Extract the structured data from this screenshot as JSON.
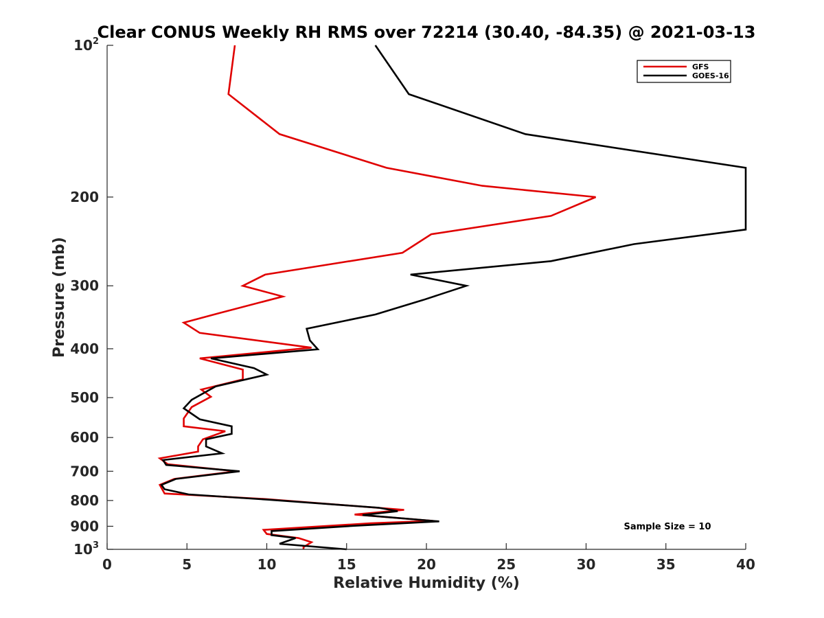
{
  "chart_data": {
    "type": "line",
    "title": "Clear CONUS Weekly RH RMS over 72214 (30.40, -84.35) @ 2021-03-13",
    "xlabel": "Relative Humidity (%)",
    "ylabel": "Pressure (mb)",
    "xlim": [
      0,
      40
    ],
    "ylim": [
      100,
      1000
    ],
    "yscale": "log",
    "y_reversed": true,
    "x_ticks": [
      0,
      5,
      10,
      15,
      20,
      25,
      30,
      35,
      40
    ],
    "x_tick_labels": [
      "0",
      "5",
      "10",
      "15",
      "20",
      "25",
      "30",
      "35",
      "40"
    ],
    "y_ticks": [
      {
        "value": 100,
        "base": "10",
        "exp": "2",
        "label": ""
      },
      {
        "value": 200,
        "base": "",
        "exp": "",
        "label": "200"
      },
      {
        "value": 300,
        "base": "",
        "exp": "",
        "label": "300"
      },
      {
        "value": 400,
        "base": "",
        "exp": "",
        "label": "400"
      },
      {
        "value": 500,
        "base": "",
        "exp": "",
        "label": "500"
      },
      {
        "value": 600,
        "base": "",
        "exp": "",
        "label": "600"
      },
      {
        "value": 700,
        "base": "",
        "exp": "",
        "label": "700"
      },
      {
        "value": 800,
        "base": "",
        "exp": "",
        "label": "800"
      },
      {
        "value": 900,
        "base": "",
        "exp": "",
        "label": "900"
      },
      {
        "value": 1000,
        "base": "10",
        "exp": "3",
        "label": ""
      }
    ],
    "legend_position": "top-right",
    "series": [
      {
        "name": "GFS",
        "color": "#e00000",
        "points": [
          [
            8.0,
            100
          ],
          [
            7.6,
            125
          ],
          [
            10.8,
            150
          ],
          [
            17.5,
            175
          ],
          [
            23.5,
            190
          ],
          [
            30.6,
            200
          ],
          [
            27.8,
            218
          ],
          [
            20.3,
            237
          ],
          [
            18.5,
            258
          ],
          [
            9.9,
            285
          ],
          [
            8.5,
            300
          ],
          [
            11.0,
            315
          ],
          [
            7.0,
            340
          ],
          [
            4.8,
            355
          ],
          [
            5.8,
            372
          ],
          [
            12.8,
            398
          ],
          [
            5.8,
            418
          ],
          [
            8.5,
            440
          ],
          [
            8.5,
            460
          ],
          [
            5.9,
            482
          ],
          [
            6.5,
            498
          ],
          [
            5.3,
            522
          ],
          [
            4.8,
            550
          ],
          [
            4.8,
            570
          ],
          [
            7.4,
            583
          ],
          [
            6.0,
            605
          ],
          [
            5.7,
            625
          ],
          [
            5.7,
            640
          ],
          [
            3.3,
            660
          ],
          [
            3.8,
            678
          ],
          [
            8.1,
            700
          ],
          [
            4.2,
            725
          ],
          [
            3.3,
            745
          ],
          [
            3.6,
            775
          ],
          [
            10.0,
            795
          ],
          [
            18.6,
            835
          ],
          [
            15.5,
            853
          ],
          [
            20.4,
            878
          ],
          [
            16.5,
            888
          ],
          [
            9.8,
            915
          ],
          [
            10.0,
            932
          ],
          [
            12.0,
            950
          ],
          [
            12.8,
            968
          ],
          [
            12.3,
            990
          ],
          [
            12.3,
            1000
          ]
        ]
      },
      {
        "name": "GOES-16",
        "color": "#000000",
        "points": [
          [
            16.8,
            100
          ],
          [
            18.9,
            125
          ],
          [
            26.2,
            150
          ],
          [
            40.0,
            175
          ],
          [
            40.0,
            200
          ],
          [
            40.0,
            232
          ],
          [
            33.0,
            248
          ],
          [
            27.8,
            268
          ],
          [
            19.0,
            285
          ],
          [
            22.5,
            300
          ],
          [
            19.8,
            320
          ],
          [
            16.8,
            342
          ],
          [
            12.5,
            365
          ],
          [
            12.7,
            385
          ],
          [
            13.2,
            401
          ],
          [
            6.5,
            418
          ],
          [
            9.2,
            437
          ],
          [
            10.0,
            450
          ],
          [
            6.8,
            475
          ],
          [
            5.3,
            505
          ],
          [
            4.8,
            525
          ],
          [
            5.8,
            552
          ],
          [
            7.8,
            570
          ],
          [
            7.8,
            590
          ],
          [
            6.2,
            605
          ],
          [
            6.2,
            625
          ],
          [
            7.2,
            645
          ],
          [
            3.5,
            665
          ],
          [
            3.7,
            680
          ],
          [
            8.3,
            700
          ],
          [
            4.3,
            725
          ],
          [
            3.4,
            745
          ],
          [
            3.6,
            760
          ],
          [
            5.1,
            778
          ],
          [
            10.1,
            797
          ],
          [
            17.0,
            827
          ],
          [
            18.2,
            840
          ],
          [
            16.0,
            855
          ],
          [
            20.8,
            880
          ],
          [
            15.5,
            898
          ],
          [
            10.3,
            920
          ],
          [
            10.3,
            937
          ],
          [
            11.8,
            950
          ],
          [
            10.8,
            975
          ],
          [
            15.0,
            1000
          ]
        ]
      }
    ],
    "annotation": "Sample Size = 10"
  }
}
